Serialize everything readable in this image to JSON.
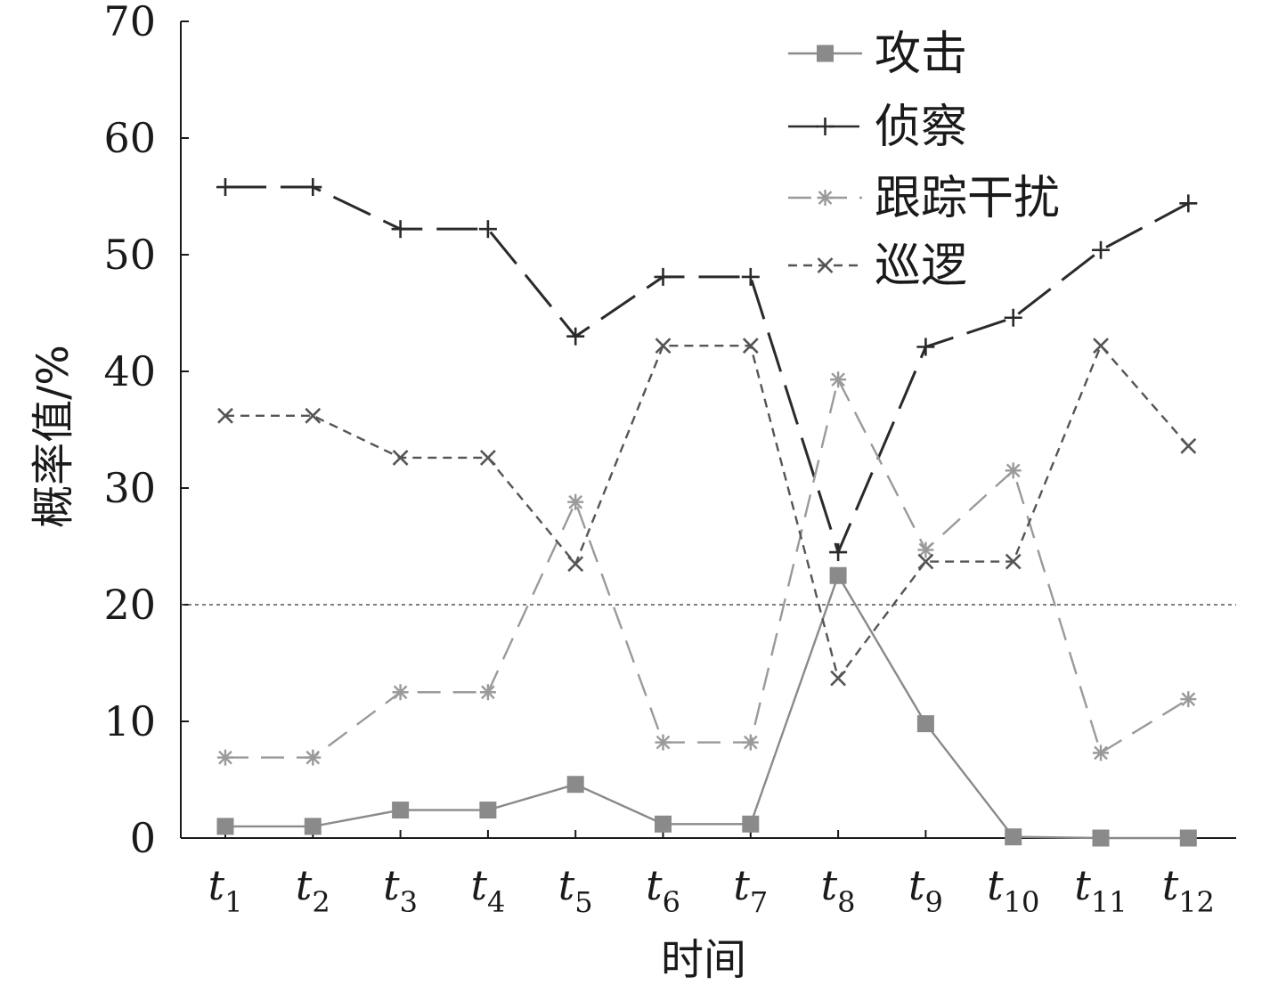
{
  "chart_data": {
    "type": "line",
    "xlabel": "时间",
    "ylabel": "概率值/%",
    "ylim": [
      0,
      70
    ],
    "yticks": [
      0,
      10,
      20,
      30,
      40,
      50,
      60,
      70
    ],
    "categories": [
      {
        "base": "t",
        "sub": "1"
      },
      {
        "base": "t",
        "sub": "2"
      },
      {
        "base": "t",
        "sub": "3"
      },
      {
        "base": "t",
        "sub": "4"
      },
      {
        "base": "t",
        "sub": "5"
      },
      {
        "base": "t",
        "sub": "6"
      },
      {
        "base": "t",
        "sub": "7"
      },
      {
        "base": "t",
        "sub": "8"
      },
      {
        "base": "t",
        "sub": "9"
      },
      {
        "base": "t",
        "sub": "10"
      },
      {
        "base": "t",
        "sub": "11"
      },
      {
        "base": "t",
        "sub": "12"
      }
    ],
    "reference_line": {
      "y": 20,
      "style": "dotted",
      "color": "#555555"
    },
    "grid": false,
    "legend_position": "top-right",
    "series": [
      {
        "name": "攻击",
        "marker": "square",
        "line": "solid",
        "color": "#8a8a8a",
        "values": [
          1.0,
          1.0,
          2.4,
          2.4,
          4.6,
          1.2,
          1.2,
          22.5,
          9.8,
          0.1,
          0.0,
          0.0
        ]
      },
      {
        "name": "侦察",
        "marker": "plus",
        "line": "long-dash",
        "color": "#2a2a2a",
        "values": [
          55.8,
          55.8,
          52.2,
          52.2,
          43.0,
          48.1,
          48.1,
          24.5,
          42.1,
          44.6,
          50.4,
          54.4
        ]
      },
      {
        "name": "跟踪干扰",
        "marker": "asterisk",
        "line": "dash",
        "color": "#9a9a9a",
        "values": [
          6.9,
          6.9,
          12.5,
          12.5,
          28.8,
          8.2,
          8.2,
          39.3,
          24.7,
          31.5,
          7.3,
          11.9
        ]
      },
      {
        "name": "巡逻",
        "marker": "x",
        "line": "short-dash",
        "color": "#555555",
        "values": [
          36.2,
          36.2,
          32.6,
          32.6,
          23.5,
          42.2,
          42.2,
          13.7,
          23.7,
          23.7,
          42.2,
          33.6
        ]
      }
    ]
  }
}
